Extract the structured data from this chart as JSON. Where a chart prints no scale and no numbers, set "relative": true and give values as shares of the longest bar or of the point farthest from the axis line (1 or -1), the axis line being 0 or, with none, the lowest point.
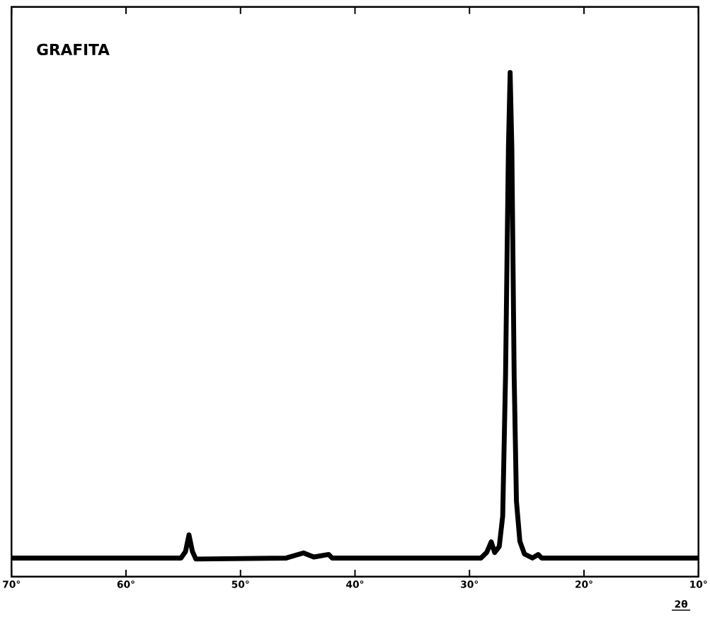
{
  "chart_data": {
    "type": "line",
    "title": "GRAFITA",
    "xlabel": "2θ",
    "relative": true,
    "color": "#000000",
    "line_style": "solid",
    "xlim": [
      70,
      10
    ],
    "xticks": [
      {
        "value": 70,
        "label": "70°"
      },
      {
        "value": 60,
        "label": "60°"
      },
      {
        "value": 50,
        "label": "50°"
      },
      {
        "value": 40,
        "label": "40°"
      },
      {
        "value": 30,
        "label": "30°"
      },
      {
        "value": 20,
        "label": "20°"
      },
      {
        "value": 10,
        "label": "10°"
      }
    ],
    "x": [
      70,
      55.2,
      54.8,
      54.5,
      54.2,
      53.9,
      46,
      44.5,
      43.6,
      42.3,
      42.0,
      29,
      28.5,
      28.1,
      27.8,
      27.4,
      27.1,
      26.85,
      26.6,
      26.45,
      26.3,
      26.1,
      25.9,
      25.6,
      25.2,
      24.5,
      24.0,
      23.7,
      10
    ],
    "values": [
      0.037,
      0.037,
      0.05,
      0.083,
      0.05,
      0.035,
      0.037,
      0.047,
      0.039,
      0.044,
      0.037,
      0.037,
      0.048,
      0.069,
      0.048,
      0.06,
      0.12,
      0.4,
      0.85,
      1.0,
      0.85,
      0.4,
      0.15,
      0.07,
      0.045,
      0.037,
      0.044,
      0.037,
      0.037
    ]
  }
}
